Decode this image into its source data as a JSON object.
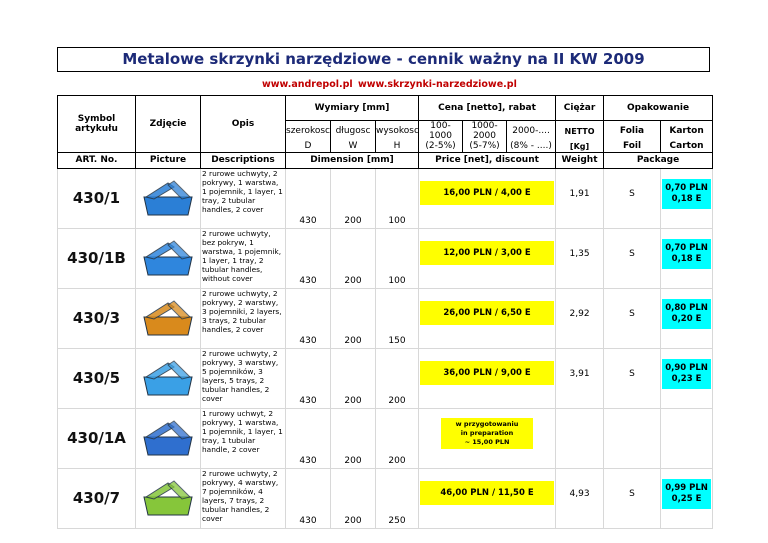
{
  "title": "Metalowe skrzynki narzędziowe - cennik ważny na II KW 2009",
  "links": [
    "www.andrepol.pl",
    "www.skrzynki-narzedziowe.pl"
  ],
  "header": {
    "row1": {
      "symbol": "Symbol artykułu",
      "picture": "Zdjęcie",
      "description": "Opis",
      "dimensions": "Wymiary [mm]",
      "price": "Cena [netto], rabat",
      "weight": "Ciężar",
      "package": "Opakowanie"
    },
    "dimension_labels": [
      [
        "szerokosc",
        "D"
      ],
      [
        "długosc",
        "W"
      ],
      [
        "wysokosc",
        "H"
      ]
    ],
    "price_labels": [
      [
        "100-1000",
        "(2-5%)"
      ],
      [
        "1000-2000",
        "(5-7%)"
      ],
      [
        "2000-....",
        "(8% - ....)"
      ]
    ],
    "weight_labels": [
      "NETTO",
      "[Kg]"
    ],
    "package_labels": [
      [
        "Folia",
        "Foil"
      ],
      [
        "Karton",
        "Carton"
      ]
    ],
    "row4": {
      "symbol": "ART. No.",
      "picture": "Picture",
      "description": "Descriptions",
      "dimensions": "Dimension [mm]",
      "price": "Price [net], discount",
      "weight": "Weight",
      "package": "Package"
    }
  },
  "rows": [
    {
      "art": "430/1",
      "description": "2 rurowe uchwyty, 2 pokrywy, 1 warstwa, 1 pojemnik, 1 layer, 1 tray, 2 tubular handles, 2 cover",
      "dimensions": [
        430,
        200,
        100
      ],
      "price": "16,00 PLN / 4,00 E",
      "weight": "1,91",
      "folia": "S",
      "package": [
        "0,70 PLN",
        "0,18 E"
      ]
    },
    {
      "art": "430/1B",
      "description": "2 rurowe uchwyty, bez pokryw, 1 warstwa, 1 pojemnik, 1 layer, 1 tray, 2 tubular handles, without cover",
      "dimensions": [
        430,
        200,
        100
      ],
      "price": "12,00 PLN / 3,00 E",
      "weight": "1,35",
      "folia": "S",
      "package": [
        "0,70 PLN",
        "0,18 E"
      ]
    },
    {
      "art": "430/3",
      "description": "2 rurowe uchwyty, 2 pokrywy, 2 warstwy, 3 pojemniki, 2 layers, 3 trays, 2 tubular handles, 2 cover",
      "dimensions": [
        430,
        200,
        150
      ],
      "price": "26,00 PLN / 6,50 E",
      "weight": "2,92",
      "folia": "S",
      "package": [
        "0,80 PLN",
        "0,20 E"
      ]
    },
    {
      "art": "430/5",
      "description": "2 rurowe uchwyty, 2 pokrywy, 3 warstwy, 5 pojemników, 3 layers, 5 trays, 2 tubular handles, 2 cover",
      "dimensions": [
        430,
        200,
        200
      ],
      "price": "36,00 PLN / 9,00 E",
      "weight": "3,91",
      "folia": "S",
      "package": [
        "0,90 PLN",
        "0,23 E"
      ]
    },
    {
      "art": "430/1A",
      "description": "1 rurowy uchwyt, 2 pokrywy, 1 warstwa, 1 pojemnik, 1 layer, 1 tray, 1 tubular handle, 2 cover",
      "dimensions": [
        430,
        200,
        200
      ],
      "price_note": [
        "w przygotowaniu",
        "in preparation",
        "~ 15,00 PLN"
      ]
    },
    {
      "art": "430/7",
      "description": "2 rurowe uchwyty, 2 pokrywy, 4 warstwy, 7 pojemników, 4 layers, 7 trays, 2 tubular handles, 2 cover",
      "dimensions": [
        430,
        200,
        250
      ],
      "price": "46,00 PLN / 11,50 E",
      "weight": "4,93",
      "folia": "S",
      "package": [
        "0,99 PLN",
        "0,25 E"
      ]
    }
  ]
}
